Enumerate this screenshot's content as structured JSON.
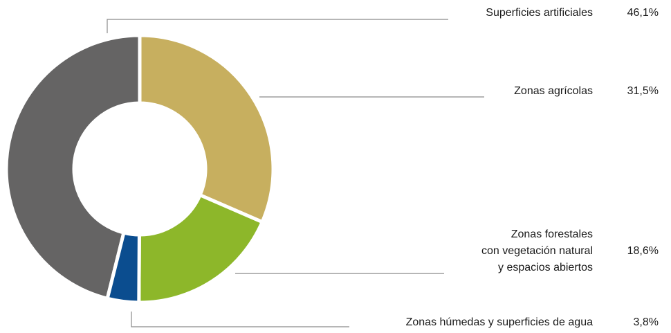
{
  "chart_data": {
    "type": "donut",
    "categories": [
      "Superficies artificiales",
      "Zonas agrícolas",
      "Zonas forestales\ncon vegetación natural\ny espacios abiertos",
      "Zonas húmedas y superficies de agua"
    ],
    "values": [
      46.1,
      31.5,
      18.6,
      3.8
    ],
    "value_labels": [
      "46,1%",
      "31,5%",
      "18,6%",
      "3,8%"
    ],
    "colors": [
      "#656464",
      "#c7af5f",
      "#8db72a",
      "#0b4d8f"
    ]
  }
}
